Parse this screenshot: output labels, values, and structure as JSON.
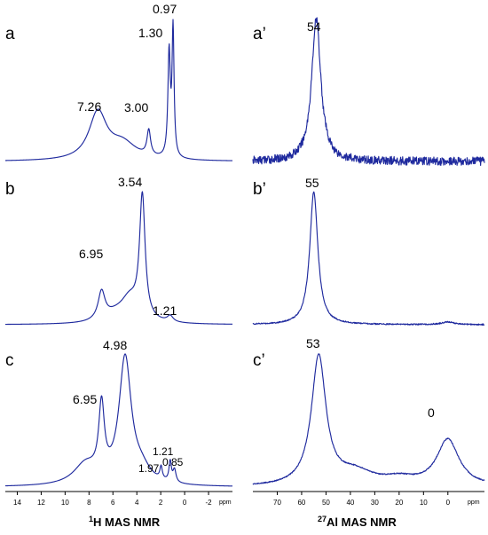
{
  "chart_data": [
    {
      "type": "line",
      "panel": "a",
      "nucleus": "1H",
      "x_range_ppm": [
        15,
        -4
      ],
      "peaks": [
        {
          "ppm": 7.26,
          "label": "7.26",
          "rel_height": 0.37
        },
        {
          "ppm": 3.0,
          "label": "3.00",
          "rel_height": 0.2
        },
        {
          "ppm": 1.3,
          "label": "1.30",
          "rel_height": 0.82
        },
        {
          "ppm": 0.97,
          "label": "0.97",
          "rel_height": 1.0
        }
      ]
    },
    {
      "type": "line",
      "panel": "b",
      "nucleus": "1H",
      "x_range_ppm": [
        15,
        -4
      ],
      "peaks": [
        {
          "ppm": 6.95,
          "label": "6.95",
          "rel_height": 0.23
        },
        {
          "ppm": 3.54,
          "label": "3.54",
          "rel_height": 1.0
        },
        {
          "ppm": 1.21,
          "label": "1.21",
          "rel_height": 0.05
        }
      ]
    },
    {
      "type": "line",
      "panel": "c",
      "nucleus": "1H",
      "x_range_ppm": [
        15,
        -4
      ],
      "x_ticks": [
        14,
        12,
        10,
        8,
        6,
        4,
        2,
        0,
        -2
      ],
      "x_unit": "ppm",
      "x_title": {
        "sup": "1",
        "text": "H MAS NMR"
      },
      "peaks": [
        {
          "ppm": 6.95,
          "label": "6.95",
          "rel_height": 0.56
        },
        {
          "ppm": 4.98,
          "label": "4.98",
          "rel_height": 1.0
        },
        {
          "ppm": 1.97,
          "label": "1.97",
          "rel_height": 0.1
        },
        {
          "ppm": 1.21,
          "label": "1.21",
          "rel_height": 0.16
        },
        {
          "ppm": 0.85,
          "label": "0.85",
          "rel_height": 0.1
        }
      ]
    },
    {
      "type": "line",
      "panel": "a’",
      "nucleus": "27Al",
      "x_range_ppm": [
        80,
        -15
      ],
      "peaks": [
        {
          "ppm": 54,
          "label": "54",
          "rel_height": 1.0
        }
      ]
    },
    {
      "type": "line",
      "panel": "b’",
      "nucleus": "27Al",
      "x_range_ppm": [
        80,
        -15
      ],
      "peaks": [
        {
          "ppm": 55,
          "label": "55",
          "rel_height": 1.0
        },
        {
          "ppm": 0,
          "label": "",
          "rel_height": 0.02
        }
      ]
    },
    {
      "type": "line",
      "panel": "c’",
      "nucleus": "27Al",
      "x_range_ppm": [
        80,
        -15
      ],
      "x_ticks": [
        70,
        60,
        50,
        40,
        30,
        20,
        10,
        0
      ],
      "x_unit": "ppm",
      "x_title": {
        "sup": "27",
        "text": "Al MAS NMR"
      },
      "peaks": [
        {
          "ppm": 53,
          "label": "53",
          "rel_height": 1.0
        },
        {
          "ppm": 0,
          "label": "0",
          "rel_height": 0.36
        }
      ]
    }
  ],
  "colors": {
    "spectrum": "#1f2a9e",
    "axis": "#000000",
    "background": "#ffffff"
  }
}
